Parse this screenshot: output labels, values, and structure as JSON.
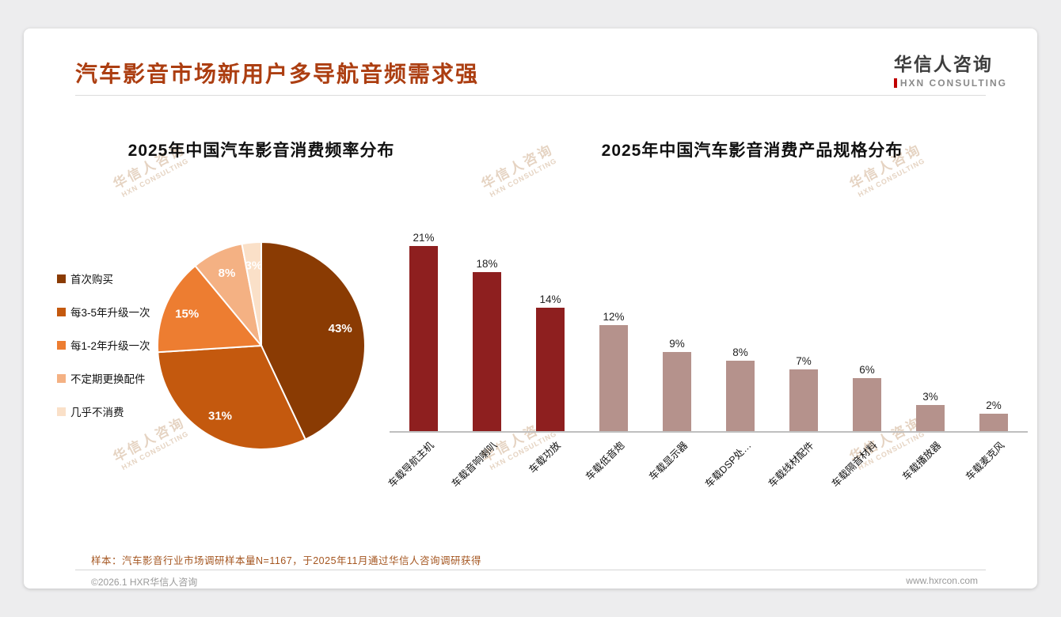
{
  "page": {
    "title": "汽车影音市场新用户多导航音频需求强",
    "logo": {
      "cn": "华信人咨询",
      "en": "HXN CONSULTING"
    },
    "watermark": {
      "cn": "华信人咨询",
      "en": "HXN CONSULTING"
    },
    "footnote": "样本：汽车影音行业市场调研样本量N=1167，于2025年11月通过华信人咨询调研获得",
    "footer_left": "©2026.1 HXR华信人咨询",
    "footer_right": "www.hxrcon.com"
  },
  "theme": {
    "accent": "#AC3E11",
    "footnote_color": "#A4551F",
    "logo_accent": "#C00000"
  },
  "chart_data": [
    {
      "type": "pie",
      "title": "2025年中国汽车影音消费频率分布",
      "categories": [
        "首次购买",
        "每3-5年升级一次",
        "每1-2年升级一次",
        "不定期更换配件",
        "几乎不消费"
      ],
      "values": [
        43,
        31,
        15,
        8,
        3
      ],
      "unit": "%",
      "colors": [
        "#8A3B03",
        "#C4590E",
        "#ED7D31",
        "#F4B183",
        "#FAE0C8"
      ],
      "legend_position": "left",
      "start_angle": 0,
      "direction": "clockwise",
      "data_labels": true
    },
    {
      "type": "bar",
      "title": "2025年中国汽车影音消费产品规格分布",
      "categories": [
        "车载导航主机",
        "车载音响喇叭",
        "车载功放",
        "车载低音炮",
        "车载显示器",
        "车载DSP处…",
        "车载线材配件",
        "车载隔音材料",
        "车载播放器",
        "车载麦克风"
      ],
      "values": [
        21,
        18,
        14,
        12,
        9,
        8,
        7,
        6,
        3,
        2
      ],
      "unit": "%",
      "bar_colors": [
        "#8E1F1F",
        "#8E1F1F",
        "#8E1F1F",
        "#B5928C",
        "#B5928C",
        "#B5928C",
        "#B5928C",
        "#B5928C",
        "#B5928C",
        "#B5928C"
      ],
      "ylim": [
        0,
        22
      ],
      "grid": false,
      "legend": false,
      "data_labels": true
    }
  ]
}
